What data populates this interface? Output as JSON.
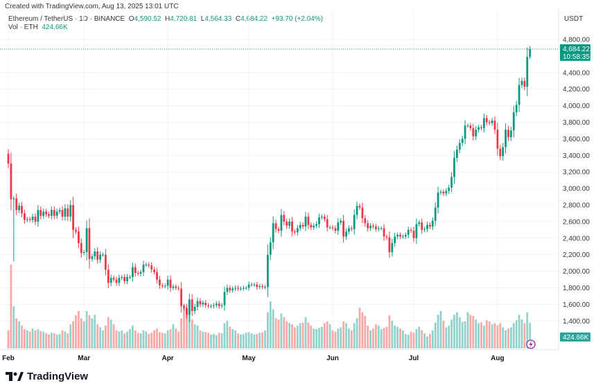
{
  "header": {
    "credit": "Created with TradingView.com, Aug 13, 2025 13:01 UTC"
  },
  "legend": {
    "symbol": "Ethereum / TetherUS · 1D · BINANCE",
    "o_label": "O",
    "o": "4,590.52",
    "h_label": "H",
    "h": "4,720.81",
    "l_label": "L",
    "l": "4,564.33",
    "c_label": "C",
    "c": "4,684.22",
    "change": "+93.70 (+2.04%)",
    "vol_label": "Vol · ETH",
    "vol": "424.66K"
  },
  "axis": {
    "currency": "USDT",
    "last_price": "4,684.22",
    "countdown": "10:58:35",
    "last_volume": "424.66K"
  },
  "branding": {
    "logo": "TradingView"
  },
  "colors": {
    "up": "#089981",
    "down": "#F23645",
    "up_vol": "#92D2CC",
    "down_vol": "#F7A9A7"
  },
  "chart_data": {
    "type": "candlestick",
    "title": "Ethereum / TetherUS · 1D · BINANCE",
    "x_start": "2025-02-01",
    "x_end": "2025-08-13",
    "x_ticks": [
      {
        "label": "Feb",
        "date": "2025-02-01"
      },
      {
        "label": "Mar",
        "date": "2025-03-01"
      },
      {
        "label": "Apr",
        "date": "2025-04-01"
      },
      {
        "label": "May",
        "date": "2025-05-01"
      },
      {
        "label": "Jun",
        "date": "2025-06-01"
      },
      {
        "label": "Jul",
        "date": "2025-07-01"
      },
      {
        "label": "Aug",
        "date": "2025-08-01"
      }
    ],
    "y_ticks": [
      "1,400.00",
      "1,600.00",
      "1,800.00",
      "2,000.00",
      "2,200.00",
      "2,400.00",
      "2,600.00",
      "2,800.00",
      "3,000.00",
      "3,200.00",
      "3,400.00",
      "3,600.00",
      "3,800.00",
      "4,000.00",
      "4,200.00",
      "4,400.00",
      "4,800.00"
    ],
    "ylim": [
      1400,
      4800
    ],
    "first_open": 3420,
    "close": [
      3300,
      2870,
      2880,
      2740,
      2790,
      2700,
      2620,
      2630,
      2620,
      2660,
      2600,
      2740,
      2670,
      2720,
      2690,
      2670,
      2740,
      2670,
      2720,
      2740,
      2660,
      2760,
      2660,
      2800,
      2500,
      2480,
      2340,
      2220,
      2230,
      2520,
      2150,
      2180,
      2240,
      2140,
      2200,
      2200,
      2020,
      1860,
      1920,
      1900,
      1860,
      1920,
      1930,
      1880,
      1930,
      1930,
      2050,
      1980,
      1970,
      1990,
      2080,
      2080,
      2070,
      2020,
      1990,
      1900,
      1830,
      1820,
      1825,
      1900,
      1800,
      1815,
      1800,
      1790,
      1580,
      1560,
      1475,
      1660,
      1520,
      1570,
      1640,
      1600,
      1620,
      1590,
      1580,
      1580,
      1590,
      1610,
      1580,
      1590,
      1750,
      1800,
      1770,
      1790,
      1800,
      1790,
      1790,
      1800,
      1800,
      1840,
      1840,
      1840,
      1810,
      1820,
      1810,
      1810,
      2200,
      2350,
      2580,
      2510,
      2490,
      2680,
      2600,
      2550,
      2600,
      2480,
      2470,
      2520,
      2560,
      2540,
      2660,
      2560,
      2530,
      2550,
      2570,
      2650,
      2660,
      2630,
      2530,
      2530,
      2520,
      2490,
      2590,
      2610,
      2420,
      2480,
      2520,
      2510,
      2680,
      2790,
      2770,
      2640,
      2580,
      2520,
      2550,
      2540,
      2510,
      2520,
      2520,
      2420,
      2410,
      2230,
      2340,
      2420,
      2440,
      2420,
      2420,
      2440,
      2500,
      2490,
      2400,
      2570,
      2590,
      2500,
      2510,
      2560,
      2540,
      2610,
      2770,
      2950,
      2960,
      2940,
      2970,
      3010,
      3140,
      3370,
      3470,
      3550,
      3600,
      3760,
      3760,
      3730,
      3630,
      3710,
      3740,
      3730,
      3850,
      3800,
      3790,
      3820,
      3710,
      3480,
      3390,
      3500,
      3710,
      3620,
      3700,
      3920,
      4010,
      4250,
      4300,
      4230,
      4590.52,
      4684.22
    ],
    "volume_k": [
      300,
      1390,
      700,
      500,
      450,
      380,
      320,
      300,
      280,
      330,
      300,
      320,
      290,
      280,
      250,
      230,
      260,
      250,
      230,
      240,
      300,
      280,
      250,
      400,
      450,
      550,
      620,
      500,
      450,
      620,
      550,
      500,
      560,
      400,
      350,
      300,
      380,
      520,
      480,
      400,
      300,
      280,
      300,
      250,
      280,
      320,
      380,
      300,
      260,
      250,
      300,
      280,
      240,
      260,
      300,
      330,
      270,
      260,
      250,
      300,
      320,
      400,
      330,
      280,
      500,
      720,
      640,
      800,
      480,
      400,
      380,
      300,
      280,
      270,
      260,
      230,
      240,
      220,
      260,
      250,
      420,
      460,
      360,
      320,
      300,
      250,
      230,
      240,
      260,
      270,
      250,
      230,
      240,
      260,
      270,
      300,
      600,
      780,
      650,
      500,
      480,
      580,
      520,
      450,
      420,
      400,
      350,
      380,
      420,
      430,
      520,
      430,
      380,
      330,
      320,
      340,
      360,
      420,
      450,
      400,
      300,
      280,
      330,
      350,
      450,
      420,
      330,
      300,
      420,
      500,
      680,
      600,
      540,
      380,
      300,
      330,
      400,
      380,
      320,
      340,
      360,
      550,
      460,
      380,
      360,
      330,
      300,
      240,
      230,
      280,
      260,
      320,
      360,
      300,
      250,
      200,
      240,
      300,
      430,
      560,
      620,
      460,
      350,
      380,
      480,
      560,
      600,
      520,
      440,
      450,
      600,
      560,
      540,
      480,
      420,
      430,
      380,
      470,
      450,
      400,
      420,
      380,
      420,
      350,
      300,
      330,
      350,
      420,
      470,
      560,
      480,
      420,
      600,
      424.66
    ],
    "notable_lows": [
      {
        "date": "2025-02-03",
        "low": 2120
      },
      {
        "date": "2025-04-09",
        "low": 1385
      }
    ],
    "last": {
      "open": 4590.52,
      "high": 4720.81,
      "low": 4564.33,
      "close": 4684.22
    }
  }
}
